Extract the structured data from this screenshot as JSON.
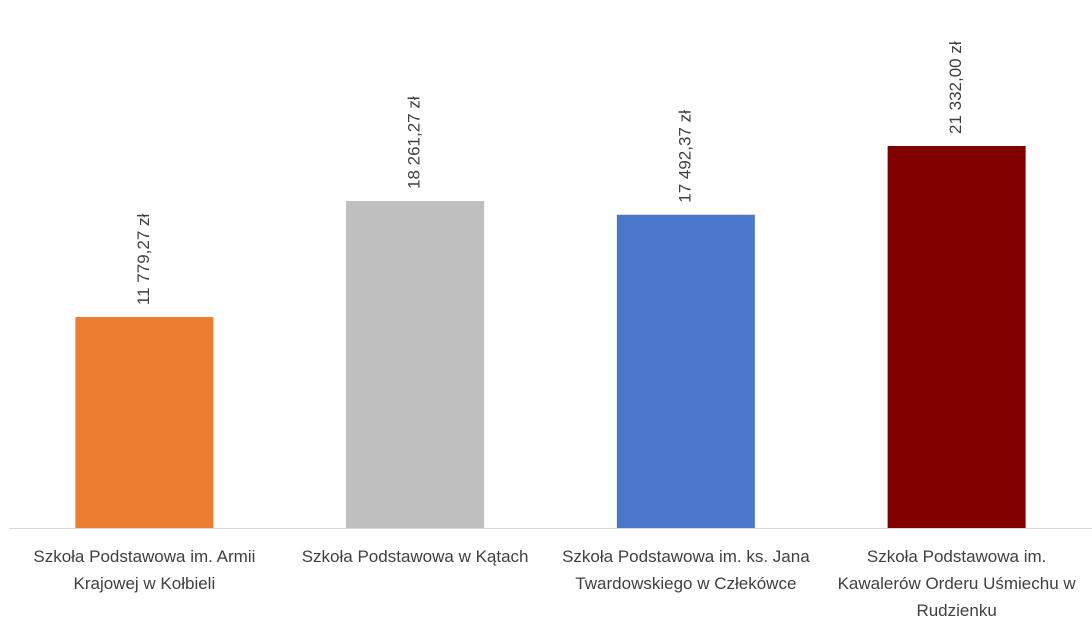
{
  "chart_data": {
    "type": "bar",
    "categories": [
      "Szkoła Podstawowa im. Armii Krajowej w Kołbieli",
      "Szkoła Podstawowa w Kątach",
      "Szkoła Podstawowa im. ks. Jana Twardowskiego w Człekówce",
      "Szkoła Podstawowa im. Kawalerów Orderu Uśmiechu w Rudzienku"
    ],
    "values": [
      11779.27,
      18261.27,
      17492.37,
      21332.0
    ],
    "value_labels": [
      "11 779,27 zł",
      "18 261,27 zł",
      "17 492,37 zł",
      "21 332,00 zł"
    ],
    "colors": [
      "#ed7d31",
      "#bfbfbf",
      "#4a76cc",
      "#800000"
    ]
  }
}
